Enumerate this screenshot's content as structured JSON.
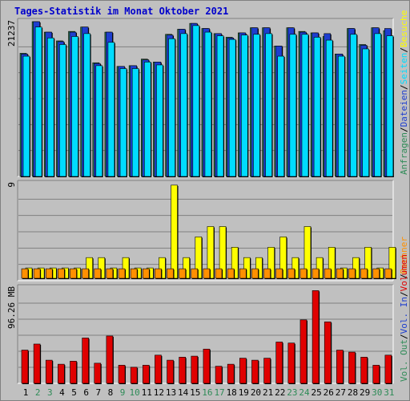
{
  "title": "Tages-Statistik im Monat Oktober 2021",
  "colors": {
    "anfragen": "#2e8b57",
    "dateien": "#1e3ecf",
    "seiten": "#00dcff",
    "besuche": "#ffff00",
    "rechner": "#ff9000",
    "vol_in": "#1e3ecf",
    "vol_out": "#2e8b57",
    "volumen": "#e00000",
    "weekend_day": "#2e8b57",
    "weekday": "#000000",
    "background": "#c0c0c0"
  },
  "chart_data": [
    {
      "type": "bar",
      "name": "hits-chart",
      "categories": [
        "1",
        "2",
        "3",
        "4",
        "5",
        "6",
        "7",
        "8",
        "9",
        "10",
        "11",
        "12",
        "13",
        "14",
        "15",
        "16",
        "17",
        "18",
        "19",
        "20",
        "21",
        "22",
        "23",
        "24",
        "25",
        "26",
        "27",
        "28",
        "29",
        "30",
        "31"
      ],
      "weekend_days": [
        "2",
        "3",
        "9",
        "10",
        "16",
        "17",
        "23",
        "24",
        "30",
        "31"
      ],
      "ymax_label": "21237",
      "ylim": [
        0,
        21237
      ],
      "series": [
        {
          "name": "Anfragen",
          "values": [
            16900,
            21237,
            19800,
            18600,
            19900,
            20500,
            15600,
            19800,
            15100,
            15200,
            16100,
            15700,
            19500,
            20200,
            21000,
            20300,
            19600,
            19100,
            19700,
            20400,
            20400,
            17900,
            20400,
            19900,
            19700,
            19200,
            16800,
            20300,
            18100,
            20400,
            20000
          ]
        },
        {
          "name": "Dateien",
          "values": [
            16800,
            21237,
            19800,
            18500,
            19800,
            20500,
            15500,
            19800,
            15100,
            15200,
            16000,
            15700,
            19400,
            20200,
            21000,
            20300,
            19600,
            19000,
            19700,
            20400,
            20400,
            17900,
            20400,
            19800,
            19700,
            19600,
            16800,
            20300,
            18000,
            20400,
            20300
          ]
        },
        {
          "name": "Seiten",
          "values": [
            16500,
            20500,
            19000,
            18100,
            19200,
            19600,
            15200,
            18400,
            14800,
            14800,
            15700,
            15300,
            18900,
            19600,
            20700,
            19800,
            19300,
            18800,
            19400,
            19500,
            19600,
            16500,
            19500,
            19500,
            19100,
            18700,
            16500,
            19500,
            17500,
            19600,
            19300
          ]
        }
      ]
    },
    {
      "type": "bar",
      "name": "visits-chart",
      "categories": [
        "1",
        "2",
        "3",
        "4",
        "5",
        "6",
        "7",
        "8",
        "9",
        "10",
        "11",
        "12",
        "13",
        "14",
        "15",
        "16",
        "17",
        "18",
        "19",
        "20",
        "21",
        "22",
        "23",
        "24",
        "25",
        "26",
        "27",
        "28",
        "29",
        "30",
        "31"
      ],
      "ymax_label": "9",
      "ylim": [
        0,
        9
      ],
      "series": [
        {
          "name": "Besuche",
          "values": [
            1,
            1,
            1,
            1,
            1,
            2,
            2,
            1,
            2,
            1,
            1,
            2,
            9,
            2,
            4,
            5,
            5,
            3,
            2,
            2,
            3,
            4,
            2,
            5,
            2,
            3,
            1,
            2,
            3,
            1,
            3
          ]
        },
        {
          "name": "Rechner",
          "values": [
            1,
            1,
            1,
            1,
            1,
            1,
            1,
            1,
            1,
            1,
            1,
            1,
            1,
            1,
            1,
            1,
            1,
            1,
            1,
            1,
            1,
            1,
            1,
            1,
            1,
            1,
            1,
            1,
            1,
            1,
            1
          ]
        }
      ]
    },
    {
      "type": "bar",
      "name": "volume-chart",
      "categories": [
        "1",
        "2",
        "3",
        "4",
        "5",
        "6",
        "7",
        "8",
        "9",
        "10",
        "11",
        "12",
        "13",
        "14",
        "15",
        "16",
        "17",
        "18",
        "19",
        "20",
        "21",
        "22",
        "23",
        "24",
        "25",
        "26",
        "27",
        "28",
        "29",
        "30",
        "31"
      ],
      "ymax_label": "96.26 MB",
      "ylim": [
        0,
        96.26
      ],
      "series": [
        {
          "name": "Volumen",
          "values": [
            33,
            39,
            23,
            19,
            22,
            45,
            20,
            47,
            18,
            16,
            18,
            28,
            23,
            26,
            27,
            34,
            17,
            19,
            25,
            23,
            25,
            41,
            40,
            63,
            92,
            61,
            33,
            31,
            26,
            18,
            28
          ]
        }
      ]
    }
  ],
  "legend_right": [
    {
      "key": "anfragen",
      "text": "Anfragen"
    },
    {
      "key": "sep",
      "text": "/"
    },
    {
      "key": "dateien",
      "text": "Dateien"
    },
    {
      "key": "sep",
      "text": "/"
    },
    {
      "key": "seiten",
      "text": "Seiten"
    },
    {
      "key": "sep",
      "text": "/"
    },
    {
      "key": "besuche",
      "text": "Besuche"
    },
    {
      "key": "sep",
      "text": "/"
    },
    {
      "key": "rechner",
      "text": "Rechner"
    },
    {
      "key": "sep",
      "text": "/"
    },
    {
      "key": "vol_out",
      "text": "Vol. Out"
    },
    {
      "key": "sep",
      "text": "/"
    },
    {
      "key": "vol_in",
      "text": "Vol. In"
    },
    {
      "key": "sep",
      "text": "/"
    },
    {
      "key": "volumen",
      "text": "Volumen"
    }
  ]
}
